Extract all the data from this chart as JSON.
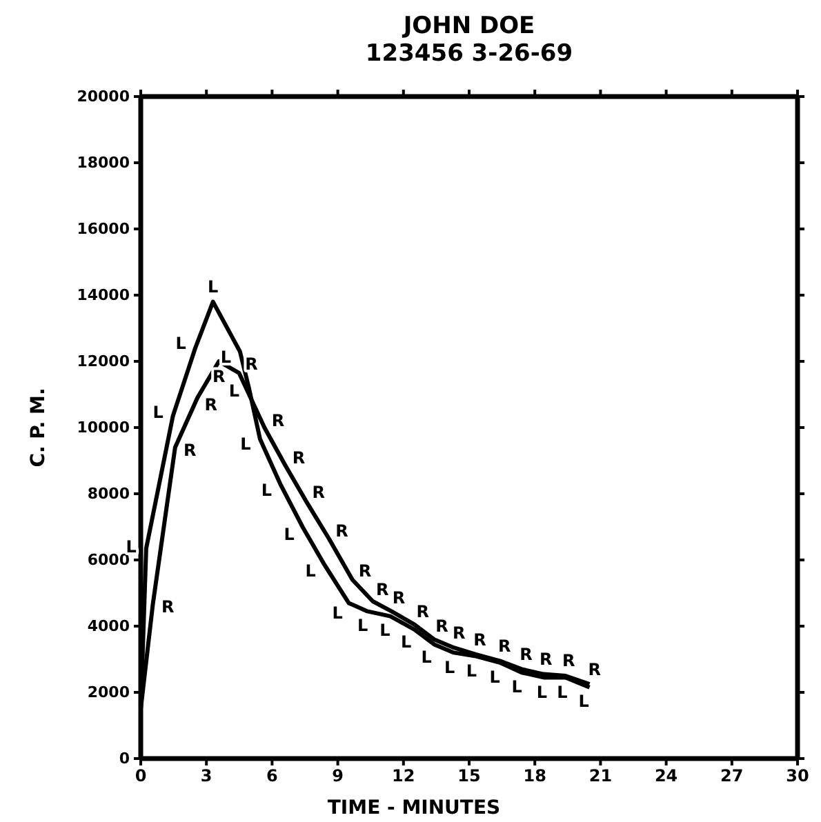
{
  "chart_data": {
    "type": "line",
    "title": "JOHN DOE",
    "subtitle": "123456 3-26-69",
    "xlabel": "TIME - MINUTES",
    "ylabel": "C. P. M.",
    "xlim": [
      0,
      30
    ],
    "xticks": [
      0,
      3,
      6,
      9,
      12,
      15,
      18,
      21,
      24,
      27,
      30
    ],
    "ylim": [
      0,
      20000
    ],
    "yticks": [
      0,
      2000,
      4000,
      6000,
      8000,
      10000,
      12000,
      14000,
      16000,
      18000,
      20000
    ],
    "grid": false,
    "legend": false,
    "series": [
      {
        "name": "L",
        "color": "#000000",
        "x": [
          0,
          0.25,
          1.47,
          2.49,
          3.3,
          4.53,
          4.94,
          5.45,
          6.37,
          7.39,
          8.35,
          9.5,
          10.35,
          11.4,
          12.5,
          13.4,
          14.3,
          15.25,
          16.4,
          17.4,
          18.4,
          19.4,
          20.5
        ],
        "values": [
          1500,
          6350,
          10350,
          12400,
          13800,
          12300,
          11200,
          9650,
          8300,
          7000,
          5900,
          4700,
          4450,
          4300,
          3900,
          3450,
          3200,
          3100,
          2900,
          2600,
          2450,
          2450,
          2150
        ]
      },
      {
        "name": "R",
        "color": "#000000",
        "x": [
          0,
          0.55,
          1.57,
          2.59,
          3.57,
          4.49,
          5.65,
          6.61,
          7.53,
          8.59,
          9.67,
          10.6,
          11.45,
          12.5,
          13.4,
          14.3,
          15.3,
          16.4,
          17.4,
          18.4,
          19.4,
          20.5
        ],
        "values": [
          1500,
          4650,
          9400,
          10900,
          12000,
          11650,
          10000,
          8850,
          7800,
          6650,
          5400,
          4750,
          4450,
          4050,
          3600,
          3350,
          3150,
          2950,
          2700,
          2550,
          2500,
          2250
        ]
      }
    ]
  }
}
